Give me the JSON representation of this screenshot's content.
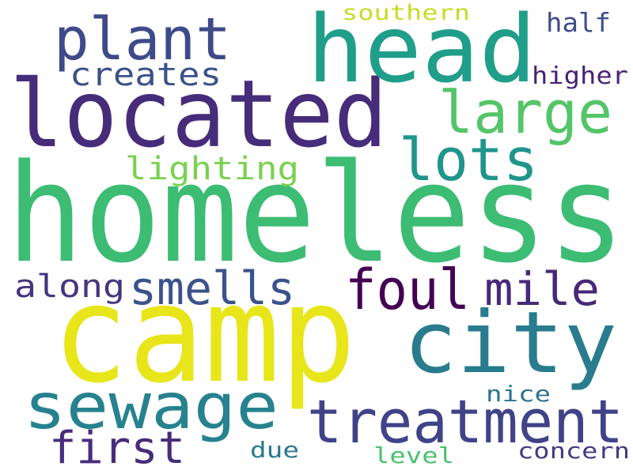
{
  "words": [
    {
      "text": "homeless",
      "color": "#3dbc74"
    },
    {
      "text": "camp",
      "color": "#e8e51a"
    },
    {
      "text": "located",
      "color": "#472c7a"
    },
    {
      "text": "head",
      "color": "#1f9e89"
    },
    {
      "text": "city",
      "color": "#297b8e"
    },
    {
      "text": "sewage",
      "color": "#26828e"
    },
    {
      "text": "treatment",
      "color": "#404387"
    },
    {
      "text": "plant",
      "color": "#3e4a89"
    },
    {
      "text": "large",
      "color": "#54c568"
    },
    {
      "text": "lots",
      "color": "#1f958b"
    },
    {
      "text": "foul",
      "color": "#440154"
    },
    {
      "text": "smells",
      "color": "#3b528b"
    },
    {
      "text": "mile",
      "color": "#482878"
    },
    {
      "text": "first",
      "color": "#472d7b"
    },
    {
      "text": "creates",
      "color": "#3b518b"
    },
    {
      "text": "lighting",
      "color": "#7ad151"
    },
    {
      "text": "along",
      "color": "#453581"
    },
    {
      "text": "southern",
      "color": "#c2df23"
    },
    {
      "text": "half",
      "color": "#3e4c8a"
    },
    {
      "text": "higher",
      "color": "#482173"
    },
    {
      "text": "nice",
      "color": "#2c738e"
    },
    {
      "text": "due",
      "color": "#2a788e"
    },
    {
      "text": "level",
      "color": "#4ac16d"
    },
    {
      "text": "concern",
      "color": "#443a83"
    }
  ]
}
